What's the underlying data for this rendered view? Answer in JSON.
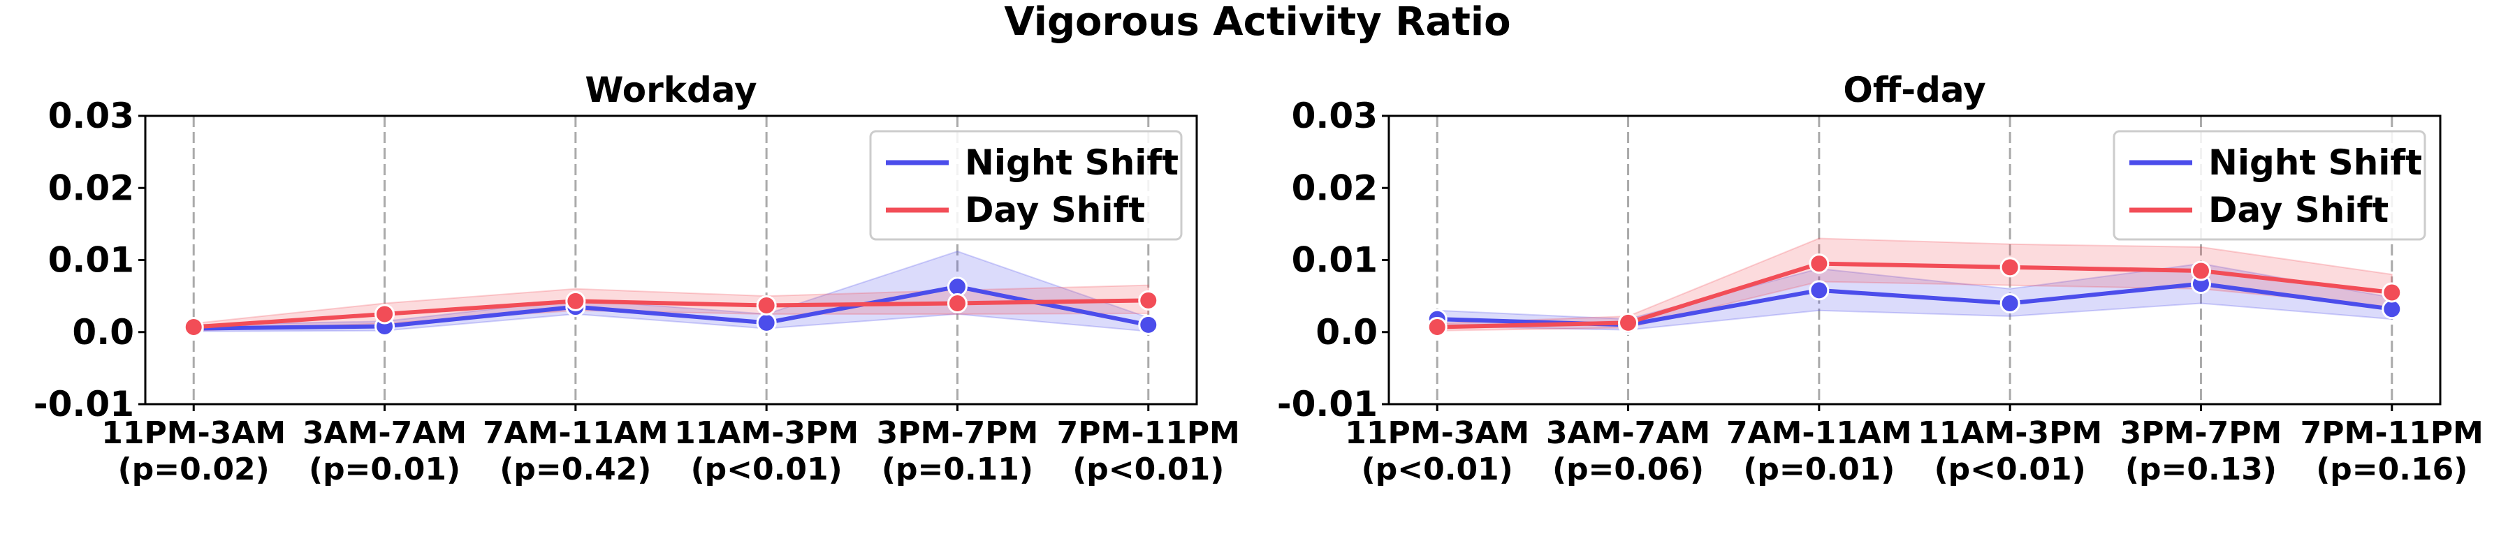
{
  "chart_data": {
    "title": "Vigorous Activity Ratio",
    "type": "line",
    "colors": {
      "Night Shift": "#4B4DEB",
      "Day Shift": "#F24D57"
    },
    "ylim": [
      -0.01,
      0.03
    ],
    "yticks": [
      "0.03",
      "0.02",
      "0.01",
      "0.0",
      "-0.01"
    ],
    "grid": "vertical dashed lines at each category",
    "legend_position": "upper right",
    "panels": [
      {
        "title": "Workday",
        "categories": [
          "11PM-3AM",
          "3AM-7AM",
          "7AM-11AM",
          "11AM-3PM",
          "3PM-7PM",
          "7PM-11PM"
        ],
        "pvalues": [
          "(p=0.02)",
          "(p=0.01)",
          "(p=0.42)",
          "(p<0.01)",
          "(p=0.11)",
          "(p<0.01)"
        ],
        "series": [
          {
            "name": "Night Shift",
            "values": [
              0.0005,
              0.0008,
              0.0035,
              0.0013,
              0.0063,
              0.001
            ],
            "lower": [
              0.0001,
              0.0002,
              0.0025,
              0.0005,
              0.0025,
              0.0001
            ],
            "upper": [
              0.001,
              0.0015,
              0.0045,
              0.0025,
              0.0112,
              0.002
            ]
          },
          {
            "name": "Day Shift",
            "values": [
              0.0007,
              0.0025,
              0.0043,
              0.0037,
              0.004,
              0.0044
            ],
            "lower": [
              0.0002,
              0.0012,
              0.003,
              0.0025,
              0.0025,
              0.0026
            ],
            "upper": [
              0.0012,
              0.004,
              0.006,
              0.005,
              0.0058,
              0.0065
            ]
          }
        ]
      },
      {
        "title": "Off-day",
        "categories": [
          "11PM-3AM",
          "3AM-7AM",
          "7AM-11AM",
          "11AM-3PM",
          "3PM-7PM",
          "7PM-11PM"
        ],
        "pvalues": [
          "(p<0.01)",
          "(p=0.06)",
          "(p=0.01)",
          "(p<0.01)",
          "(p=0.13)",
          "(p=0.16)"
        ],
        "series": [
          {
            "name": "Night Shift",
            "values": [
              0.0018,
              0.001,
              0.0058,
              0.004,
              0.0067,
              0.0032
            ],
            "lower": [
              0.0008,
              0.0003,
              0.003,
              0.0022,
              0.004,
              0.0018
            ],
            "upper": [
              0.003,
              0.0018,
              0.0088,
              0.006,
              0.0095,
              0.0048
            ]
          },
          {
            "name": "Day Shift",
            "values": [
              0.0007,
              0.0013,
              0.0095,
              0.009,
              0.0085,
              0.0055
            ],
            "lower": [
              0.0002,
              0.0006,
              0.007,
              0.0065,
              0.006,
              0.0035
            ],
            "upper": [
              0.0012,
              0.0022,
              0.013,
              0.0122,
              0.0118,
              0.008
            ]
          }
        ]
      }
    ]
  }
}
